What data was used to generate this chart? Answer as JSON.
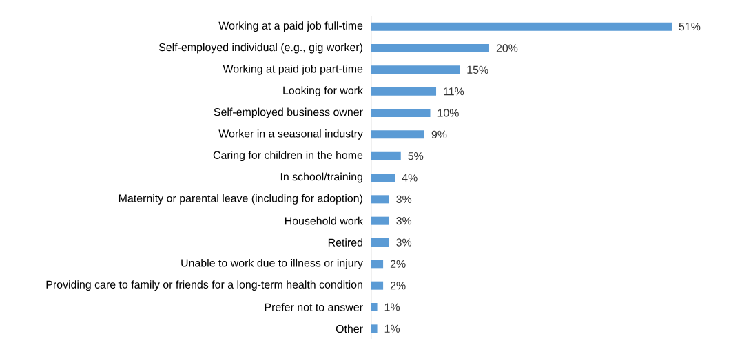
{
  "chart_data": {
    "type": "bar",
    "orientation": "horizontal",
    "categories": [
      "Working at a paid job full-time",
      "Self-employed individual (e.g., gig worker)",
      "Working at paid job part-time",
      "Looking for work",
      "Self-employed business owner",
      "Worker in a seasonal industry",
      "Caring for children in the home",
      "In school/training",
      "Maternity or parental leave (including for adoption)",
      "Household work",
      "Retired",
      "Unable to work due to illness or injury",
      "Providing care to family or friends for a long-term health condition",
      "Prefer not to answer",
      "Other"
    ],
    "values": [
      51,
      20,
      15,
      11,
      10,
      9,
      5,
      4,
      3,
      3,
      3,
      2,
      2,
      1,
      1
    ],
    "value_labels": [
      "51%",
      "20%",
      "15%",
      "11%",
      "10%",
      "9%",
      "5%",
      "4%",
      "3%",
      "3%",
      "3%",
      "2%",
      "2%",
      "1%",
      "1%"
    ],
    "color": "#5b9bd5"
  }
}
